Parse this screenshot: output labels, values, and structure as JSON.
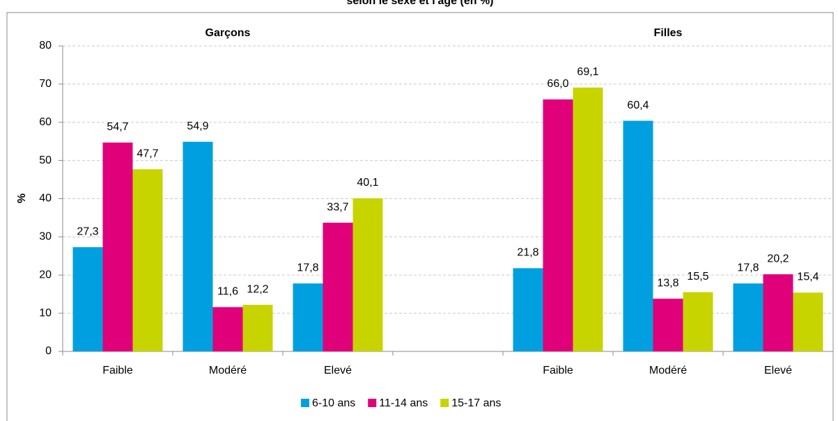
{
  "chart_data": {
    "type": "bar",
    "title": "selon le sexe et l'âge (en %)",
    "ylabel": "%",
    "annotations": [
      "Garçons",
      "Filles"
    ],
    "categories": [
      "Faible",
      "Modéré",
      "Elevé",
      null,
      "Faible",
      "Modéré",
      "Elevé"
    ],
    "series": [
      {
        "name": "6-10 ans",
        "color": "#00a0e0",
        "values": [
          27.3,
          54.9,
          17.8,
          null,
          21.8,
          60.4,
          17.8
        ],
        "value_labels": [
          "27,3",
          "54,9",
          "17,8",
          null,
          "21,8",
          "60,4",
          "17,8"
        ]
      },
      {
        "name": "11-14 ans",
        "color": "#e0007a",
        "values": [
          54.7,
          11.6,
          33.7,
          null,
          66.0,
          13.8,
          20.2
        ],
        "value_labels": [
          "54,7",
          "11,6",
          "33,7",
          null,
          "66,0",
          "13,8",
          "20,2"
        ]
      },
      {
        "name": "15-17 ans",
        "color": "#c8d400",
        "values": [
          47.7,
          12.2,
          40.1,
          null,
          69.1,
          15.5,
          15.4
        ],
        "value_labels": [
          "47,7",
          "12,2",
          "40,1",
          null,
          "69,1",
          "15,5",
          "15,4"
        ]
      }
    ],
    "ylim": [
      0,
      80
    ],
    "yticks": [
      0,
      10,
      20,
      30,
      40,
      50,
      60,
      70,
      80
    ],
    "grid": true,
    "legend": "bottom"
  }
}
